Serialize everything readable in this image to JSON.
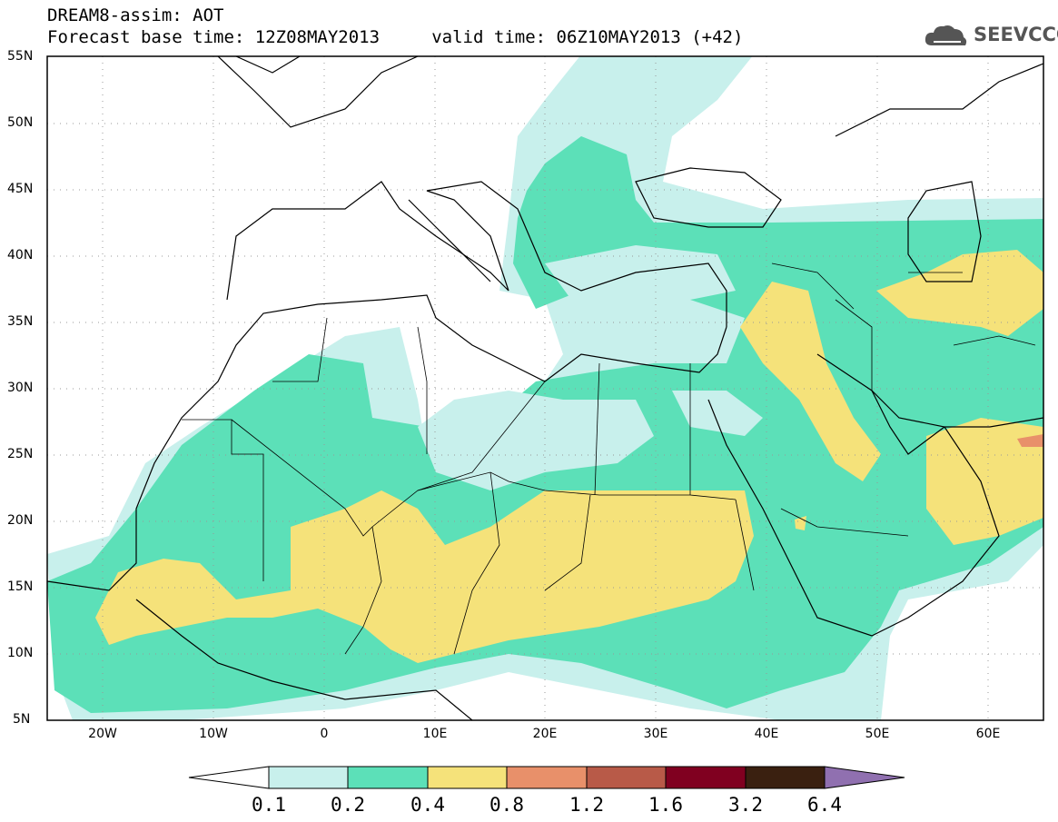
{
  "header": {
    "title": "DREAM8-assim: AOT",
    "subtitle": "Forecast base time: 12Z08MAY2013     valid time: 06Z10MAY2013 (+42)",
    "logo_text": "SEEVCCC"
  },
  "map": {
    "lat_labels": [
      "55N",
      "50N",
      "45N",
      "40N",
      "35N",
      "30N",
      "25N",
      "20N",
      "15N",
      "10N",
      "5N"
    ],
    "lon_labels": [
      "20W",
      "10W",
      "0",
      "10E",
      "20E",
      "30E",
      "40E",
      "50E",
      "60E"
    ],
    "lon_range": [
      -25,
      65
    ],
    "lat_range": [
      5,
      55
    ]
  },
  "colorbar": {
    "labels": [
      "0.1",
      "0.2",
      "0.4",
      "0.8",
      "1.2",
      "1.6",
      "3.2",
      "6.4"
    ],
    "colors": [
      "#ffffff",
      "#c8f0ec",
      "#5ce0b8",
      "#f5e27a",
      "#e8906a",
      "#b85a48",
      "#800020",
      "#3a2010",
      "#9070b0"
    ]
  }
}
